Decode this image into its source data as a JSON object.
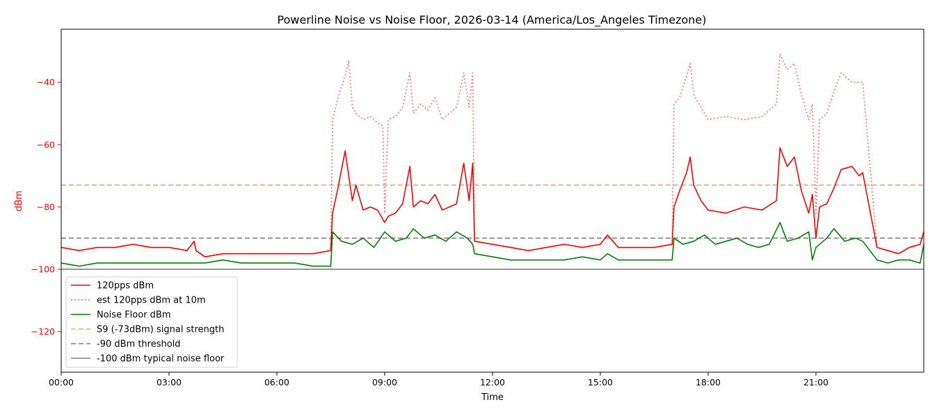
{
  "chart_data": {
    "type": "line",
    "title": "Powerline Noise vs Noise Floor, 2026-03-14 (America/Los_Angeles Timezone)",
    "xlabel": "Time",
    "ylabel": "dBm",
    "xlim": [
      0,
      24
    ],
    "ylim": [
      -133,
      -23
    ],
    "x_ticks": [
      {
        "value": 0,
        "label": "00:00"
      },
      {
        "value": 3,
        "label": "03:00"
      },
      {
        "value": 6,
        "label": "06:00"
      },
      {
        "value": 9,
        "label": "09:00"
      },
      {
        "value": 12,
        "label": "12:00"
      },
      {
        "value": 15,
        "label": "15:00"
      },
      {
        "value": 18,
        "label": "18:00"
      },
      {
        "value": 21,
        "label": "21:00"
      }
    ],
    "y_ticks": [
      {
        "value": -40,
        "label": "−40"
      },
      {
        "value": -60,
        "label": "−60"
      },
      {
        "value": -80,
        "label": "−80"
      },
      {
        "value": -100,
        "label": "−100"
      },
      {
        "value": -120,
        "label": "−120"
      }
    ],
    "grid": false,
    "legend_position": "lower-left",
    "colors": {
      "y_axis_text": "#ff0000",
      "pps": "#ff0000",
      "est": "#f08080",
      "noise": "#008000",
      "s9": "#e8a882",
      "thr90": "#808080",
      "floor": "#808080"
    },
    "series": [
      {
        "name": "120pps dBm",
        "style": "solid",
        "color": "#ff0000",
        "x": [
          0,
          0.5,
          1,
          1.5,
          2,
          2.5,
          3,
          3.5,
          3.7,
          3.75,
          4,
          4.5,
          5,
          5.5,
          6,
          6.5,
          7,
          7.5,
          7.55,
          7.7,
          7.9,
          8.1,
          8.2,
          8.4,
          8.6,
          8.8,
          9.0,
          9.1,
          9.3,
          9.5,
          9.7,
          9.8,
          10.0,
          10.2,
          10.4,
          10.6,
          10.8,
          11.0,
          11.2,
          11.35,
          11.45,
          11.5,
          12,
          12.5,
          13,
          13.5,
          14,
          14.5,
          15,
          15.2,
          15.5,
          16,
          16.5,
          17.0,
          17.05,
          17.2,
          17.4,
          17.5,
          17.6,
          17.8,
          18.0,
          18.5,
          19.0,
          19.5,
          19.9,
          20.0,
          20.2,
          20.4,
          20.6,
          20.8,
          20.9,
          21.0,
          21.1,
          21.3,
          21.5,
          21.7,
          22.0,
          22.2,
          22.3,
          22.7,
          23.0,
          23.3,
          23.6,
          23.9,
          24
        ],
        "y": [
          -93,
          -94,
          -93,
          -93,
          -92,
          -93,
          -93,
          -94,
          -91,
          -94,
          -96,
          -95,
          -95,
          -95,
          -95,
          -95,
          -95,
          -94,
          -82,
          -74,
          -62,
          -78,
          -73,
          -81,
          -80,
          -81,
          -85,
          -83,
          -82,
          -79,
          -67,
          -80,
          -78,
          -79,
          -76,
          -81,
          -80,
          -79,
          -66,
          -78,
          -66,
          -91,
          -92,
          -93,
          -94,
          -93,
          -92,
          -93,
          -92,
          -89,
          -93,
          -93,
          -93,
          -92,
          -80,
          -75,
          -69,
          -64,
          -73,
          -78,
          -81,
          -82,
          -80,
          -81,
          -78,
          -61,
          -67,
          -64,
          -75,
          -82,
          -76,
          -90,
          -80,
          -79,
          -74,
          -68,
          -67,
          -70,
          -69,
          -93,
          -94,
          -95,
          -93,
          -92,
          -88
        ]
      },
      {
        "name": "est 120pps dBm at 10m",
        "style": "dotted",
        "color": "#f08080",
        "x": [
          0,
          0.5,
          1,
          1.5,
          2,
          2.5,
          3,
          3.5,
          3.7,
          3.75,
          4,
          4.5,
          5,
          5.5,
          6,
          6.5,
          7,
          7.5,
          7.55,
          7.7,
          7.9,
          8.0,
          8.1,
          8.2,
          8.4,
          8.6,
          8.8,
          8.95,
          9.0,
          9.1,
          9.3,
          9.5,
          9.7,
          9.8,
          10.0,
          10.2,
          10.4,
          10.6,
          10.8,
          11.0,
          11.2,
          11.35,
          11.45,
          11.5,
          12,
          12.5,
          13,
          13.5,
          14,
          14.5,
          15,
          15.2,
          15.5,
          16,
          16.5,
          17.0,
          17.05,
          17.2,
          17.4,
          17.5,
          17.6,
          17.8,
          18.0,
          18.5,
          19.0,
          19.5,
          19.9,
          20.0,
          20.2,
          20.4,
          20.6,
          20.8,
          20.9,
          21.0,
          21.1,
          21.3,
          21.5,
          21.7,
          22.0,
          22.2,
          22.3,
          22.7,
          23.0,
          23.3,
          23.6,
          23.9,
          24
        ],
        "y": [
          -93,
          -94,
          -93,
          -93,
          -92,
          -93,
          -93,
          -94,
          -91,
          -94,
          -96,
          -95,
          -95,
          -95,
          -95,
          -95,
          -95,
          -94,
          -52,
          -45,
          -38,
          -33,
          -48,
          -50,
          -52,
          -51,
          -53,
          -54,
          -82,
          -52,
          -51,
          -48,
          -37,
          -50,
          -47,
          -49,
          -45,
          -52,
          -50,
          -48,
          -37,
          -48,
          -37,
          -91,
          -92,
          -93,
          -94,
          -93,
          -92,
          -93,
          -92,
          -89,
          -93,
          -93,
          -93,
          -92,
          -47,
          -45,
          -38,
          -34,
          -44,
          -48,
          -52,
          -51,
          -52,
          -51,
          -47,
          -31,
          -36,
          -34,
          -44,
          -52,
          -47,
          -82,
          -52,
          -50,
          -43,
          -37,
          -40,
          -40,
          -40,
          -93,
          -94,
          -95,
          -93,
          -92,
          -88
        ]
      },
      {
        "name": "Noise Floor dBm",
        "style": "solid",
        "color": "#008000",
        "x": [
          0,
          0.5,
          1,
          1.5,
          2,
          2.5,
          3,
          3.5,
          4,
          4.5,
          5,
          5.5,
          6,
          6.5,
          7,
          7.5,
          7.55,
          7.8,
          8.1,
          8.4,
          8.7,
          9.0,
          9.3,
          9.6,
          9.8,
          10.1,
          10.4,
          10.7,
          11.0,
          11.3,
          11.45,
          11.5,
          12,
          12.5,
          13,
          13.5,
          14,
          14.5,
          15,
          15.2,
          15.5,
          16,
          16.5,
          17.0,
          17.05,
          17.3,
          17.6,
          17.9,
          18.2,
          18.5,
          18.8,
          19.1,
          19.4,
          19.7,
          20.0,
          20.2,
          20.5,
          20.8,
          20.9,
          21.0,
          21.3,
          21.5,
          21.8,
          22.1,
          22.3,
          22.7,
          23.0,
          23.3,
          23.6,
          23.9,
          24
        ],
        "y": [
          -98,
          -99,
          -98,
          -98,
          -98,
          -98,
          -98,
          -98,
          -98,
          -97,
          -98,
          -98,
          -98,
          -98,
          -99,
          -99,
          -88,
          -91,
          -92,
          -90,
          -93,
          -88,
          -91,
          -90,
          -87,
          -90,
          -89,
          -91,
          -88,
          -90,
          -92,
          -95,
          -96,
          -97,
          -97,
          -97,
          -97,
          -96,
          -97,
          -95,
          -97,
          -97,
          -97,
          -97,
          -90,
          -92,
          -91,
          -89,
          -92,
          -91,
          -90,
          -92,
          -93,
          -92,
          -85,
          -91,
          -90,
          -88,
          -97,
          -93,
          -90,
          -87,
          -91,
          -90,
          -91,
          -97,
          -98,
          -97,
          -97,
          -98,
          -92
        ]
      },
      {
        "name": "S9 (-73dBm) signal strength",
        "style": "dashed",
        "color": "#e8a882",
        "x": [
          0,
          24
        ],
        "y": [
          -73,
          -73
        ]
      },
      {
        "name": "-90 dBm threshold",
        "style": "dashed",
        "color": "#808080",
        "x": [
          0,
          24
        ],
        "y": [
          -90,
          -90
        ]
      },
      {
        "name": "-100 dBm typical noise floor",
        "style": "solid",
        "color": "#808080",
        "x": [
          0,
          24
        ],
        "y": [
          -100,
          -100
        ]
      }
    ]
  }
}
